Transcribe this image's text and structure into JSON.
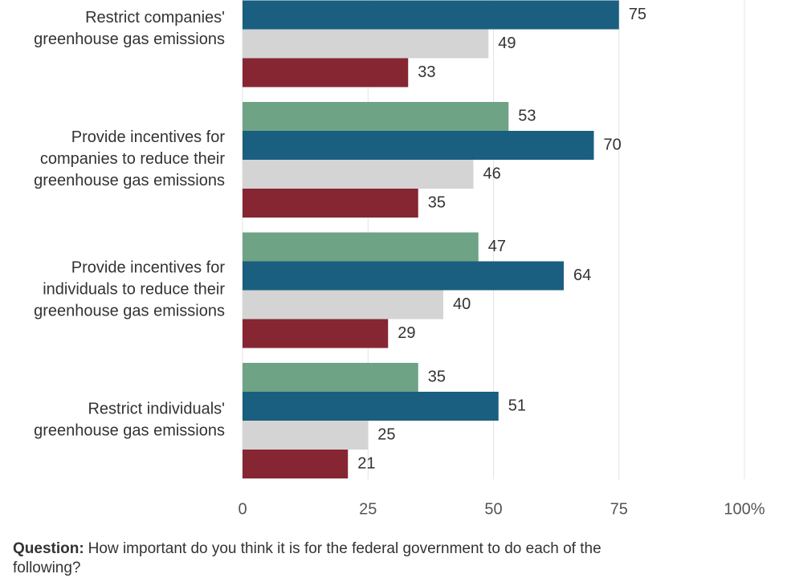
{
  "chart_data": {
    "type": "hbar",
    "categories": [
      [
        "Restrict companies'",
        "greenhouse gas emissions"
      ],
      [
        "Provide incentives for",
        "companies to reduce their",
        "greenhouse gas emissions"
      ],
      [
        "Provide incentives for",
        "individuals to reduce their",
        "greenhouse gas emissions"
      ],
      [
        "Restrict individuals'",
        "greenhouse gas emissions"
      ]
    ],
    "series": [
      {
        "color": "#6fa386",
        "values": [
          null,
          53,
          47,
          35
        ]
      },
      {
        "color": "#1a5e80",
        "values": [
          75,
          70,
          64,
          51
        ]
      },
      {
        "color": "#d4d4d4",
        "values": [
          49,
          46,
          40,
          25
        ]
      },
      {
        "color": "#862633",
        "values": [
          33,
          35,
          29,
          21
        ]
      }
    ],
    "xlim": [
      0,
      100
    ],
    "xticks": [
      0,
      25,
      50,
      75,
      {
        "value": 100,
        "label": "100%"
      }
    ],
    "grid": true,
    "footnote": {
      "label": "Question:",
      "lines": [
        "How important do you think it is for the federal government to do each of the",
        "following?"
      ]
    }
  }
}
